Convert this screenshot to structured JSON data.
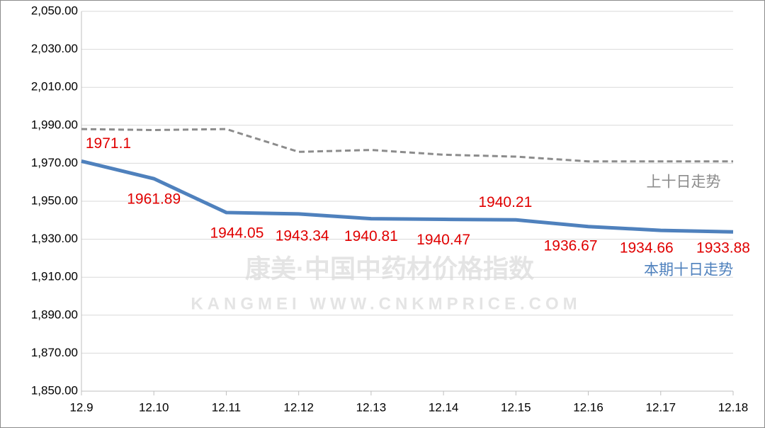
{
  "chart_data": {
    "type": "line",
    "categories": [
      "12.9",
      "12.10",
      "12.11",
      "12.12",
      "12.13",
      "12.14",
      "12.15",
      "12.16",
      "12.17",
      "12.18"
    ],
    "series": [
      {
        "name": "上十日走势",
        "color": "#8c8c8c",
        "dashed": true,
        "values": [
          1988,
          1987.5,
          1988,
          1976,
          1977,
          1974.5,
          1973.5,
          1971,
          1971,
          1971
        ]
      },
      {
        "name": "本期十日走势",
        "color": "#4f81bd",
        "dashed": false,
        "show_value_labels": true,
        "value_label_color": "#e00000",
        "values": [
          1971.1,
          1961.89,
          1944.05,
          1943.34,
          1940.81,
          1940.47,
          1940.21,
          1936.67,
          1934.66,
          1933.88
        ]
      }
    ],
    "ylim": [
      1850,
      2050
    ],
    "yticks": [
      {
        "value": 1850,
        "label": "1,850.00"
      },
      {
        "value": 1870,
        "label": "1,870.00"
      },
      {
        "value": 1890,
        "label": "1,890.00"
      },
      {
        "value": 1910,
        "label": "1,910.00"
      },
      {
        "value": 1930,
        "label": "1,930.00"
      },
      {
        "value": 1950,
        "label": "1,950.00"
      },
      {
        "value": 1970,
        "label": "1,970.00"
      },
      {
        "value": 1990,
        "label": "1,990.00"
      },
      {
        "value": 2010,
        "label": "2,010.00"
      },
      {
        "value": 2030,
        "label": "2,030.00"
      },
      {
        "value": 2050,
        "label": "2,050.00"
      }
    ],
    "grid": true,
    "watermark": [
      "康美·中国中药材价格指数",
      "KANGMEI WWW.CNKMPRICE.COM"
    ]
  }
}
